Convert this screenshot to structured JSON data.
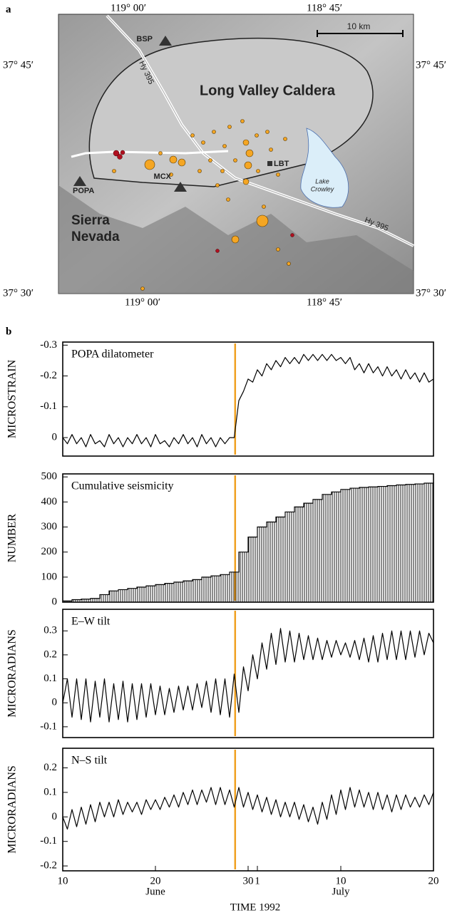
{
  "panels": [
    "a",
    "b"
  ],
  "map": {
    "lon_labels": [
      "119° 00′",
      "118° 45′"
    ],
    "lat_labels": [
      "37° 45′",
      "37° 30′"
    ],
    "stations": [
      "BSP",
      "POPA",
      "MCX",
      "LBT"
    ],
    "road": "Hy 395",
    "caldera": "Long Valley Caldera",
    "scale": "10 km",
    "lake": [
      "Lake",
      "Crowley"
    ],
    "range": [
      "Sierra",
      "Nevada"
    ]
  },
  "chart_data": [
    {
      "type": "line",
      "title": "POPA dilatometer",
      "ylabel": "MICROSTRAIN",
      "color": "#000000",
      "event_color": "#f0a020",
      "event_x": 28.6,
      "xlim": [
        10,
        50
      ],
      "ylim": [
        0.06,
        -0.31
      ],
      "yticks": [
        -0.3,
        -0.2,
        -0.1,
        0
      ],
      "x": [
        10,
        10.5,
        11,
        11.5,
        12,
        12.5,
        13,
        13.5,
        14,
        14.5,
        15,
        15.5,
        16,
        16.5,
        17,
        17.5,
        18,
        18.5,
        19,
        19.5,
        20,
        20.5,
        21,
        21.5,
        22,
        22.5,
        23,
        23.5,
        24,
        24.5,
        25,
        25.5,
        26,
        26.5,
        27,
        27.5,
        28,
        28.5,
        29,
        29.5,
        30,
        30.5,
        31,
        31.5,
        32,
        32.5,
        33,
        33.5,
        34,
        34.5,
        35,
        35.5,
        36,
        36.5,
        37,
        37.5,
        38,
        38.5,
        39,
        39.5,
        40,
        40.5,
        41,
        41.5,
        42,
        42.5,
        43,
        43.5,
        44,
        44.5,
        45,
        45.5,
        46,
        46.5,
        47,
        47.5,
        48,
        48.5,
        49,
        49.5,
        50
      ],
      "values": [
        0.0,
        0.02,
        -0.01,
        0.02,
        0.0,
        0.03,
        -0.01,
        0.02,
        0.01,
        0.03,
        -0.01,
        0.02,
        0.0,
        0.03,
        0.0,
        0.02,
        -0.01,
        0.02,
        0.0,
        0.03,
        -0.01,
        0.02,
        0.01,
        0.03,
        0.0,
        0.02,
        -0.01,
        0.02,
        0.0,
        0.03,
        -0.01,
        0.02,
        0.0,
        0.03,
        0.0,
        0.02,
        0.0,
        0.0,
        -0.12,
        -0.15,
        -0.19,
        -0.18,
        -0.22,
        -0.2,
        -0.24,
        -0.22,
        -0.25,
        -0.23,
        -0.26,
        -0.24,
        -0.26,
        -0.24,
        -0.27,
        -0.25,
        -0.27,
        -0.25,
        -0.27,
        -0.25,
        -0.27,
        -0.25,
        -0.26,
        -0.24,
        -0.26,
        -0.22,
        -0.24,
        -0.21,
        -0.24,
        -0.21,
        -0.23,
        -0.2,
        -0.23,
        -0.2,
        -0.22,
        -0.19,
        -0.22,
        -0.19,
        -0.21,
        -0.18,
        -0.21,
        -0.18,
        -0.19
      ]
    },
    {
      "type": "step",
      "title": "Cumulative seismicity",
      "ylabel": "NUMBER",
      "color": "#000000",
      "event_color": "#f0a020",
      "event_x": 28.6,
      "xlim": [
        10,
        50
      ],
      "ylim": [
        0,
        512
      ],
      "yticks": [
        0,
        100,
        200,
        300,
        400,
        500
      ],
      "x": [
        10,
        11,
        12,
        13,
        14,
        15,
        16,
        17,
        18,
        19,
        20,
        21,
        22,
        23,
        24,
        25,
        26,
        27,
        28,
        29,
        30,
        31,
        32,
        33,
        34,
        35,
        36,
        37,
        38,
        39,
        40,
        41,
        42,
        43,
        44,
        45,
        46,
        47,
        48,
        49,
        50
      ],
      "values": [
        5,
        10,
        12,
        15,
        30,
        45,
        50,
        55,
        60,
        65,
        70,
        75,
        80,
        85,
        90,
        100,
        105,
        110,
        120,
        200,
        260,
        300,
        320,
        340,
        360,
        380,
        395,
        410,
        430,
        440,
        450,
        455,
        458,
        460,
        462,
        465,
        468,
        470,
        472,
        475,
        480
      ]
    },
    {
      "type": "line",
      "title": "E–W tilt",
      "ylabel": "MICRORADIANS",
      "color": "#000000",
      "event_color": "#f0a020",
      "event_x": 28.6,
      "xlim": [
        10,
        50
      ],
      "ylim": [
        -0.145,
        0.39
      ],
      "yticks": [
        -0.1,
        0,
        0.1,
        0.2,
        0.3
      ],
      "x": [
        10,
        10.5,
        11,
        11.5,
        12,
        12.5,
        13,
        13.5,
        14,
        14.5,
        15,
        15.5,
        16,
        16.5,
        17,
        17.5,
        18,
        18.5,
        19,
        19.5,
        20,
        20.5,
        21,
        21.5,
        22,
        22.5,
        23,
        23.5,
        24,
        24.5,
        25,
        25.5,
        26,
        26.5,
        27,
        27.5,
        28,
        28.5,
        29,
        29.5,
        30,
        30.5,
        31,
        31.5,
        32,
        32.5,
        33,
        33.5,
        34,
        34.5,
        35,
        35.5,
        36,
        36.5,
        37,
        37.5,
        38,
        38.5,
        39,
        39.5,
        40,
        40.5,
        41,
        41.5,
        42,
        42.5,
        43,
        43.5,
        44,
        44.5,
        45,
        45.5,
        46,
        46.5,
        47,
        47.5,
        48,
        48.5,
        49,
        49.5,
        50
      ],
      "values": [
        0.0,
        0.1,
        -0.06,
        0.1,
        -0.07,
        0.1,
        -0.08,
        0.09,
        -0.06,
        0.1,
        -0.08,
        0.08,
        -0.07,
        0.09,
        -0.08,
        0.08,
        -0.07,
        0.08,
        -0.06,
        0.08,
        -0.05,
        0.07,
        -0.05,
        0.06,
        -0.04,
        0.07,
        -0.03,
        0.07,
        -0.03,
        0.08,
        -0.02,
        0.09,
        -0.04,
        0.1,
        -0.05,
        0.1,
        -0.06,
        0.12,
        -0.04,
        0.15,
        0.05,
        0.2,
        0.1,
        0.25,
        0.14,
        0.29,
        0.16,
        0.31,
        0.17,
        0.3,
        0.17,
        0.29,
        0.18,
        0.28,
        0.18,
        0.27,
        0.18,
        0.26,
        0.19,
        0.26,
        0.2,
        0.25,
        0.19,
        0.26,
        0.18,
        0.27,
        0.17,
        0.28,
        0.17,
        0.29,
        0.18,
        0.3,
        0.18,
        0.3,
        0.18,
        0.3,
        0.19,
        0.3,
        0.2,
        0.29,
        0.25
      ]
    },
    {
      "type": "line",
      "title": "N–S tilt",
      "ylabel": "MICRORADIANS",
      "xlabel": "TIME 1992",
      "month_labels": [
        "June",
        "July"
      ],
      "color": "#000000",
      "event_color": "#f0a020",
      "event_x": 28.6,
      "xlim": [
        10,
        50
      ],
      "xticks": [
        10,
        20,
        30,
        {
          "value": 31,
          "label": "1"
        },
        {
          "value": 40,
          "label": "10"
        },
        {
          "value": 50,
          "label": "20"
        }
      ],
      "ylim": [
        -0.22,
        0.28
      ],
      "yticks": [
        -0.2,
        -0.1,
        0,
        0.1,
        0.2
      ],
      "x": [
        10,
        10.5,
        11,
        11.5,
        12,
        12.5,
        13,
        13.5,
        14,
        14.5,
        15,
        15.5,
        16,
        16.5,
        17,
        17.5,
        18,
        18.5,
        19,
        19.5,
        20,
        20.5,
        21,
        21.5,
        22,
        22.5,
        23,
        23.5,
        24,
        24.5,
        25,
        25.5,
        26,
        26.5,
        27,
        27.5,
        28,
        28.5,
        29,
        29.5,
        30,
        30.5,
        31,
        31.5,
        32,
        32.5,
        33,
        33.5,
        34,
        34.5,
        35,
        35.5,
        36,
        36.5,
        37,
        37.5,
        38,
        38.5,
        39,
        39.5,
        40,
        40.5,
        41,
        41.5,
        42,
        42.5,
        43,
        43.5,
        44,
        44.5,
        45,
        45.5,
        46,
        46.5,
        47,
        47.5,
        48,
        48.5,
        49,
        49.5,
        50
      ],
      "values": [
        0.0,
        -0.05,
        0.03,
        -0.04,
        0.04,
        -0.03,
        0.05,
        -0.02,
        0.06,
        0.0,
        0.06,
        0.0,
        0.07,
        0.01,
        0.06,
        0.02,
        0.06,
        0.01,
        0.07,
        0.03,
        0.07,
        0.03,
        0.08,
        0.04,
        0.09,
        0.04,
        0.1,
        0.05,
        0.11,
        0.05,
        0.11,
        0.06,
        0.12,
        0.05,
        0.12,
        0.05,
        0.11,
        0.04,
        0.12,
        0.04,
        0.1,
        0.03,
        0.09,
        0.02,
        0.08,
        0.01,
        0.07,
        0.0,
        0.06,
        0.0,
        0.06,
        -0.01,
        0.05,
        -0.02,
        0.04,
        -0.03,
        0.06,
        -0.01,
        0.09,
        0.01,
        0.11,
        0.03,
        0.12,
        0.04,
        0.11,
        0.04,
        0.1,
        0.03,
        0.1,
        0.03,
        0.09,
        0.02,
        0.09,
        0.03,
        0.09,
        0.04,
        0.08,
        0.04,
        0.09,
        0.05,
        0.1
      ]
    }
  ]
}
